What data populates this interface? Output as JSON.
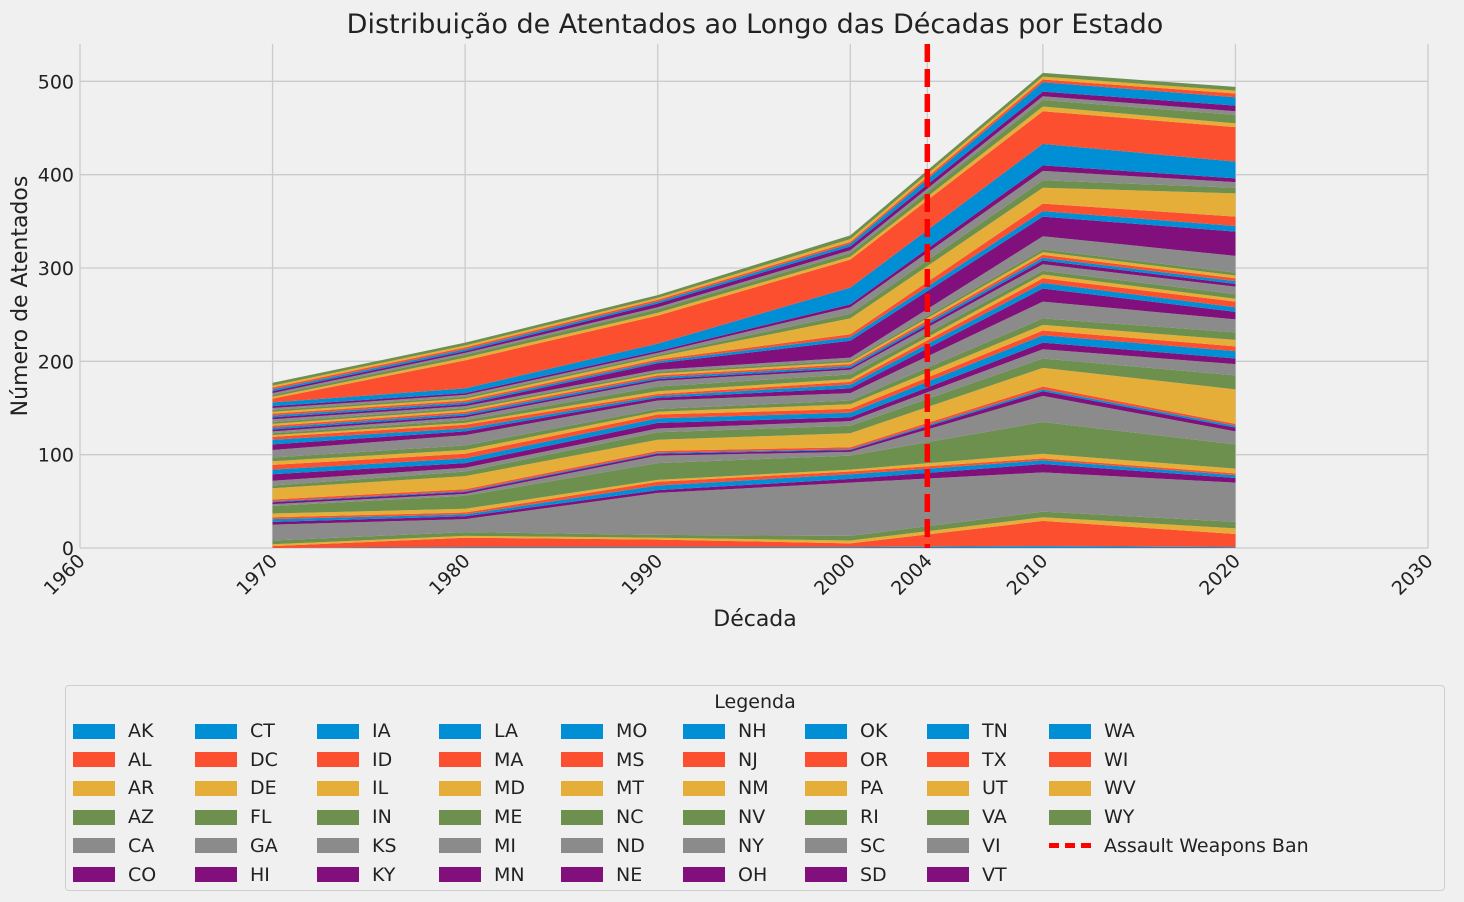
{
  "chart_data": {
    "type": "area",
    "stacked": true,
    "title": "Distribuição de Atentados ao Longo das Décadas por Estado",
    "xlabel": "Década",
    "ylabel": "Número de Atentados",
    "xlim": [
      1960,
      2030
    ],
    "ylim": [
      0,
      540
    ],
    "xticks": [
      1960,
      1970,
      1980,
      1990,
      2000,
      2004,
      2010,
      2020,
      2030
    ],
    "yticks": [
      0,
      100,
      200,
      300,
      400,
      500
    ],
    "grid": true,
    "x": [
      1970,
      1980,
      1990,
      2000,
      2010,
      2020
    ],
    "series": [
      {
        "name": "AK",
        "values": [
          0,
          1,
          1,
          1,
          2,
          1
        ]
      },
      {
        "name": "AL",
        "values": [
          2,
          10,
          8,
          4,
          27,
          14
        ]
      },
      {
        "name": "AR",
        "values": [
          2,
          2,
          2,
          3,
          4,
          6
        ]
      },
      {
        "name": "AZ",
        "values": [
          4,
          4,
          3,
          5,
          6,
          7
        ]
      },
      {
        "name": "CA",
        "values": [
          17,
          14,
          45,
          57,
          42,
          42
        ]
      },
      {
        "name": "CO",
        "values": [
          3,
          3,
          3,
          4,
          9,
          5
        ]
      },
      {
        "name": "CT",
        "values": [
          3,
          2,
          5,
          5,
          4,
          3
        ]
      },
      {
        "name": "DC",
        "values": [
          2,
          2,
          4,
          3,
          2,
          2
        ]
      },
      {
        "name": "DE",
        "values": [
          4,
          4,
          2,
          2,
          5,
          5
        ]
      },
      {
        "name": "FL",
        "values": [
          8,
          14,
          18,
          15,
          34,
          26
        ]
      },
      {
        "name": "GA",
        "values": [
          2,
          2,
          8,
          4,
          28,
          14
        ]
      },
      {
        "name": "HI",
        "values": [
          2,
          2,
          2,
          2,
          5,
          4
        ]
      },
      {
        "name": "IA",
        "values": [
          1,
          1,
          1,
          1,
          2,
          2
        ]
      },
      {
        "name": "ID",
        "values": [
          2,
          2,
          2,
          2,
          3,
          2
        ]
      },
      {
        "name": "IL",
        "values": [
          12,
          14,
          12,
          15,
          20,
          37
        ]
      },
      {
        "name": "IN",
        "values": [
          3,
          5,
          8,
          8,
          10,
          15
        ]
      },
      {
        "name": "KS",
        "values": [
          5,
          4,
          4,
          5,
          10,
          12
        ]
      },
      {
        "name": "KY",
        "values": [
          7,
          5,
          6,
          4,
          7,
          6
        ]
      },
      {
        "name": "LA",
        "values": [
          5,
          5,
          5,
          5,
          8,
          8
        ]
      },
      {
        "name": "MA",
        "values": [
          5,
          5,
          4,
          4,
          5,
          5
        ]
      },
      {
        "name": "MD",
        "values": [
          4,
          4,
          3,
          5,
          6,
          7
        ]
      },
      {
        "name": "ME",
        "values": [
          4,
          5,
          3,
          4,
          7,
          8
        ]
      },
      {
        "name": "MI",
        "values": [
          8,
          11,
          9,
          8,
          18,
          14
        ]
      },
      {
        "name": "MN",
        "values": [
          6,
          4,
          3,
          5,
          14,
          8
        ]
      },
      {
        "name": "MO",
        "values": [
          5,
          3,
          2,
          4,
          6,
          5
        ]
      },
      {
        "name": "MS",
        "values": [
          3,
          4,
          2,
          3,
          5,
          6
        ]
      },
      {
        "name": "MT",
        "values": [
          2,
          2,
          3,
          3,
          4,
          3
        ]
      },
      {
        "name": "NC",
        "values": [
          2,
          3,
          5,
          5,
          4,
          5
        ]
      },
      {
        "name": "ND",
        "values": [
          2,
          3,
          6,
          5,
          7,
          8
        ]
      },
      {
        "name": "NE",
        "values": [
          2,
          2,
          2,
          2,
          4,
          3
        ]
      },
      {
        "name": "NH",
        "values": [
          2,
          2,
          2,
          2,
          3,
          3
        ]
      },
      {
        "name": "NJ",
        "values": [
          2,
          2,
          2,
          2,
          3,
          3
        ]
      },
      {
        "name": "NM",
        "values": [
          2,
          2,
          2,
          2,
          3,
          3
        ]
      },
      {
        "name": "NV",
        "values": [
          2,
          2,
          2,
          2,
          3,
          3
        ]
      },
      {
        "name": "NY",
        "values": [
          3,
          2,
          2,
          3,
          14,
          18
        ]
      },
      {
        "name": "OH",
        "values": [
          2,
          2,
          7,
          18,
          21,
          26
        ]
      },
      {
        "name": "OK",
        "values": [
          2,
          2,
          2,
          4,
          6,
          6
        ]
      },
      {
        "name": "OR",
        "values": [
          2,
          2,
          2,
          3,
          8,
          10
        ]
      },
      {
        "name": "PA",
        "values": [
          2,
          2,
          3,
          17,
          17,
          25
        ]
      },
      {
        "name": "RI",
        "values": [
          2,
          2,
          2,
          5,
          8,
          6
        ]
      },
      {
        "name": "SC",
        "values": [
          2,
          2,
          2,
          7,
          10,
          6
        ]
      },
      {
        "name": "SD",
        "values": [
          2,
          2,
          2,
          3,
          6,
          4
        ]
      },
      {
        "name": "TN",
        "values": [
          4,
          5,
          8,
          18,
          23,
          18
        ]
      },
      {
        "name": "TX",
        "values": [
          4,
          30,
          30,
          30,
          35,
          37
        ]
      },
      {
        "name": "UT",
        "values": [
          2,
          3,
          3,
          3,
          5,
          4
        ]
      },
      {
        "name": "VA",
        "values": [
          2,
          3,
          4,
          4,
          7,
          9
        ]
      },
      {
        "name": "VI",
        "values": [
          2,
          2,
          2,
          3,
          4,
          4
        ]
      },
      {
        "name": "VT",
        "values": [
          2,
          2,
          4,
          4,
          5,
          6
        ]
      },
      {
        "name": "WA",
        "values": [
          2,
          2,
          2,
          3,
          10,
          9
        ]
      },
      {
        "name": "WI",
        "values": [
          2,
          2,
          2,
          2,
          3,
          4
        ]
      },
      {
        "name": "WV",
        "values": [
          2,
          2,
          2,
          3,
          3,
          3
        ]
      },
      {
        "name": "WY",
        "values": [
          3,
          3,
          3,
          4,
          4,
          4
        ]
      }
    ],
    "annotations": [
      {
        "type": "vline",
        "x": 2004,
        "label": "Assault Weapons Ban",
        "color": "#ff0000",
        "style": "dashed"
      }
    ],
    "colors": [
      "#008fd5",
      "#fc4f30",
      "#e5ae38",
      "#6d904f",
      "#8b8b8b",
      "#810f7c"
    ],
    "legend": {
      "title": "Legenda",
      "placement": "bottom",
      "columns": 10
    }
  }
}
